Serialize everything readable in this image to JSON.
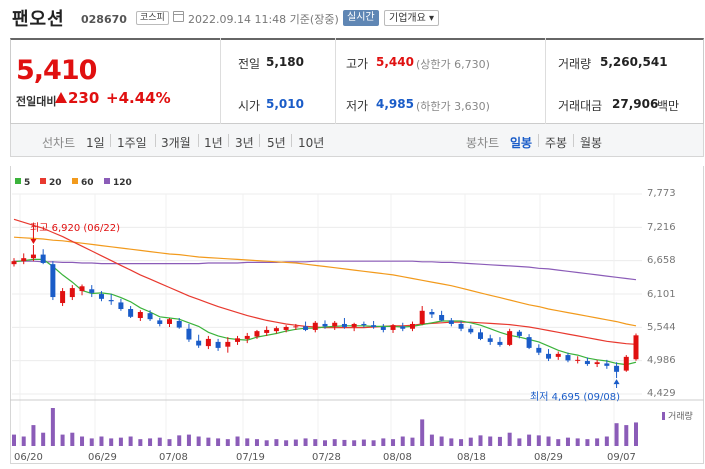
{
  "header": {
    "name": "팬오션",
    "code": "028670",
    "market": "코스피",
    "datetime": "2022.09.14 11:48 기준(장중)",
    "realtime_btn": "실시간",
    "company_btn": "기업개요 ▾",
    "calendar_icon": "calendar-icon"
  },
  "quote": {
    "price": "5,410",
    "change_label": "전일대비",
    "change_amount": "230",
    "change_percent": "+4.44%",
    "prev_close_label": "전일",
    "prev_close": "5,180",
    "open_label": "시가",
    "open": "5,010",
    "high_label": "고가",
    "high": "5,440",
    "upper_limit": "(상한가 6,730)",
    "low_label": "저가",
    "low": "4,985",
    "lower_limit": "(하한가 3,630)",
    "volume_label": "거래량",
    "volume": "5,260,541",
    "amount_label": "거래대금",
    "amount": "27,906",
    "amount_unit": "백만"
  },
  "tabs": {
    "line_chart": "선차트",
    "periods": [
      "1일",
      "1주일",
      "3개월",
      "1년",
      "3년",
      "5년",
      "10년"
    ],
    "candle_chart": "봉차트",
    "candles": [
      "일봉",
      "주봉",
      "월봉"
    ],
    "active_candle": "일봉"
  },
  "colors": {
    "up": "#e01010",
    "down": "#1a5cc8",
    "ma5": "#3bb33b",
    "ma20": "#e8392f",
    "ma60": "#f29a1c",
    "ma120": "#8b5cb8",
    "volume": "#8b5cb8"
  },
  "chart_data": {
    "type": "candlestick",
    "legend": [
      "5",
      "20",
      "60",
      "120"
    ],
    "y_ticks": [
      "7,773",
      "7,216",
      "6,658",
      "6,101",
      "5,544",
      "4,986",
      "4,429"
    ],
    "ylim": [
      4429,
      7773
    ],
    "x_ticks": [
      "06/20",
      "06/29",
      "07/08",
      "07/19",
      "07/28",
      "08/08",
      "08/18",
      "08/29",
      "09/07"
    ],
    "annotations": {
      "high": "최고 6,920 (06/22)",
      "low": "최저 4,695 (09/08)"
    },
    "volume_label": "거래량",
    "candles": [
      {
        "o": 6600,
        "h": 6700,
        "l": 6560,
        "c": 6650
      },
      {
        "o": 6650,
        "h": 6780,
        "l": 6600,
        "c": 6700
      },
      {
        "o": 6700,
        "h": 6920,
        "l": 6650,
        "c": 6760
      },
      {
        "o": 6760,
        "h": 6850,
        "l": 6600,
        "c": 6620
      },
      {
        "o": 6600,
        "h": 6650,
        "l": 6000,
        "c": 6050
      },
      {
        "o": 5950,
        "h": 6200,
        "l": 5900,
        "c": 6150
      },
      {
        "o": 6050,
        "h": 6250,
        "l": 6000,
        "c": 6200
      },
      {
        "o": 6150,
        "h": 6260,
        "l": 6080,
        "c": 6230
      },
      {
        "o": 6180,
        "h": 6250,
        "l": 6050,
        "c": 6120
      },
      {
        "o": 6100,
        "h": 6150,
        "l": 5980,
        "c": 6020
      },
      {
        "o": 6000,
        "h": 6100,
        "l": 5920,
        "c": 5980
      },
      {
        "o": 5960,
        "h": 6020,
        "l": 5820,
        "c": 5850
      },
      {
        "o": 5850,
        "h": 5900,
        "l": 5700,
        "c": 5720
      },
      {
        "o": 5700,
        "h": 5830,
        "l": 5650,
        "c": 5800
      },
      {
        "o": 5780,
        "h": 5830,
        "l": 5650,
        "c": 5680
      },
      {
        "o": 5660,
        "h": 5700,
        "l": 5560,
        "c": 5600
      },
      {
        "o": 5600,
        "h": 5700,
        "l": 5550,
        "c": 5680
      },
      {
        "o": 5650,
        "h": 5700,
        "l": 5520,
        "c": 5540
      },
      {
        "o": 5520,
        "h": 5600,
        "l": 5300,
        "c": 5340
      },
      {
        "o": 5320,
        "h": 5420,
        "l": 5200,
        "c": 5240
      },
      {
        "o": 5230,
        "h": 5400,
        "l": 5180,
        "c": 5350
      },
      {
        "o": 5300,
        "h": 5350,
        "l": 5150,
        "c": 5200
      },
      {
        "o": 5220,
        "h": 5380,
        "l": 5120,
        "c": 5300
      },
      {
        "o": 5300,
        "h": 5400,
        "l": 5250,
        "c": 5360
      },
      {
        "o": 5350,
        "h": 5450,
        "l": 5280,
        "c": 5400
      },
      {
        "o": 5390,
        "h": 5500,
        "l": 5350,
        "c": 5480
      },
      {
        "o": 5450,
        "h": 5560,
        "l": 5400,
        "c": 5500
      },
      {
        "o": 5480,
        "h": 5560,
        "l": 5440,
        "c": 5530
      },
      {
        "o": 5500,
        "h": 5580,
        "l": 5460,
        "c": 5550
      },
      {
        "o": 5550,
        "h": 5600,
        "l": 5500,
        "c": 5560
      },
      {
        "o": 5560,
        "h": 5640,
        "l": 5480,
        "c": 5500
      },
      {
        "o": 5500,
        "h": 5650,
        "l": 5460,
        "c": 5620
      },
      {
        "o": 5600,
        "h": 5660,
        "l": 5520,
        "c": 5560
      },
      {
        "o": 5560,
        "h": 5650,
        "l": 5500,
        "c": 5620
      },
      {
        "o": 5600,
        "h": 5700,
        "l": 5520,
        "c": 5550
      },
      {
        "o": 5550,
        "h": 5620,
        "l": 5480,
        "c": 5600
      },
      {
        "o": 5600,
        "h": 5640,
        "l": 5540,
        "c": 5580
      },
      {
        "o": 5580,
        "h": 5650,
        "l": 5520,
        "c": 5550
      },
      {
        "o": 5550,
        "h": 5600,
        "l": 5460,
        "c": 5500
      },
      {
        "o": 5500,
        "h": 5600,
        "l": 5450,
        "c": 5580
      },
      {
        "o": 5560,
        "h": 5620,
        "l": 5480,
        "c": 5520
      },
      {
        "o": 5520,
        "h": 5640,
        "l": 5480,
        "c": 5600
      },
      {
        "o": 5600,
        "h": 5900,
        "l": 5580,
        "c": 5820
      },
      {
        "o": 5800,
        "h": 5850,
        "l": 5700,
        "c": 5760
      },
      {
        "o": 5750,
        "h": 5820,
        "l": 5640,
        "c": 5660
      },
      {
        "o": 5660,
        "h": 5700,
        "l": 5560,
        "c": 5600
      },
      {
        "o": 5600,
        "h": 5650,
        "l": 5480,
        "c": 5520
      },
      {
        "o": 5520,
        "h": 5580,
        "l": 5430,
        "c": 5460
      },
      {
        "o": 5460,
        "h": 5520,
        "l": 5330,
        "c": 5350
      },
      {
        "o": 5360,
        "h": 5420,
        "l": 5250,
        "c": 5300
      },
      {
        "o": 5300,
        "h": 5380,
        "l": 5220,
        "c": 5250
      },
      {
        "o": 5250,
        "h": 5520,
        "l": 5230,
        "c": 5480
      },
      {
        "o": 5470,
        "h": 5500,
        "l": 5360,
        "c": 5400
      },
      {
        "o": 5380,
        "h": 5430,
        "l": 5180,
        "c": 5200
      },
      {
        "o": 5200,
        "h": 5260,
        "l": 5080,
        "c": 5120
      },
      {
        "o": 5100,
        "h": 5180,
        "l": 4980,
        "c": 5020
      },
      {
        "o": 5050,
        "h": 5140,
        "l": 5000,
        "c": 5100
      },
      {
        "o": 5080,
        "h": 5120,
        "l": 4960,
        "c": 4990
      },
      {
        "o": 4990,
        "h": 5060,
        "l": 4940,
        "c": 5000
      },
      {
        "o": 4980,
        "h": 5040,
        "l": 4900,
        "c": 4930
      },
      {
        "o": 4930,
        "h": 5000,
        "l": 4880,
        "c": 4960
      },
      {
        "o": 4940,
        "h": 5000,
        "l": 4850,
        "c": 4900
      },
      {
        "o": 4900,
        "h": 4960,
        "l": 4695,
        "c": 4800
      },
      {
        "o": 4820,
        "h": 5080,
        "l": 4800,
        "c": 5050
      },
      {
        "o": 5010,
        "h": 5440,
        "l": 4985,
        "c": 5410
      }
    ],
    "volumes": [
      30,
      25,
      55,
      35,
      100,
      30,
      35,
      25,
      20,
      25,
      20,
      22,
      25,
      18,
      20,
      22,
      18,
      28,
      30,
      25,
      22,
      20,
      18,
      25,
      20,
      18,
      15,
      18,
      15,
      17,
      20,
      18,
      15,
      18,
      16,
      15,
      17,
      15,
      20,
      18,
      25,
      22,
      70,
      30,
      25,
      20,
      18,
      22,
      28,
      25,
      24,
      35,
      20,
      30,
      28,
      25,
      18,
      22,
      20,
      18,
      20,
      25,
      60,
      55,
      62
    ],
    "ma5": [
      6640,
      6660,
      6680,
      6680,
      6560,
      6420,
      6300,
      6160,
      6110,
      6120,
      6100,
      6040,
      5970,
      5870,
      5800,
      5720,
      5700,
      5680,
      5620,
      5560,
      5460,
      5400,
      5360,
      5340,
      5330,
      5380,
      5410,
      5440,
      5480,
      5510,
      5530,
      5530,
      5550,
      5560,
      5570,
      5570,
      5570,
      5560,
      5560,
      5560,
      5550,
      5560,
      5590,
      5620,
      5650,
      5650,
      5650,
      5620,
      5580,
      5520,
      5460,
      5410,
      5380,
      5340,
      5300,
      5230,
      5160,
      5110,
      5080,
      5030,
      5000,
      4980,
      4940,
      4920,
      4960
    ],
    "ma20": [
      7350,
      7300,
      7250,
      7200,
      7130,
      7060,
      6980,
      6900,
      6820,
      6740,
      6660,
      6580,
      6500,
      6420,
      6350,
      6280,
      6210,
      6140,
      6070,
      6010,
      5950,
      5890,
      5840,
      5790,
      5740,
      5700,
      5660,
      5630,
      5600,
      5580,
      5560,
      5550,
      5540,
      5540,
      5540,
      5540,
      5540,
      5550,
      5560,
      5570,
      5570,
      5580,
      5600,
      5610,
      5620,
      5630,
      5630,
      5630,
      5620,
      5610,
      5600,
      5590,
      5570,
      5550,
      5520,
      5490,
      5460,
      5430,
      5400,
      5370,
      5340,
      5310,
      5290,
      5270,
      5260
    ],
    "ma60": [
      7050,
      7040,
      7030,
      7020,
      7000,
      6990,
      6970,
      6950,
      6930,
      6910,
      6890,
      6870,
      6850,
      6830,
      6810,
      6790,
      6770,
      6760,
      6740,
      6720,
      6710,
      6700,
      6690,
      6680,
      6670,
      6660,
      6650,
      6640,
      6630,
      6620,
      6600,
      6580,
      6560,
      6540,
      6520,
      6500,
      6480,
      6460,
      6440,
      6420,
      6390,
      6360,
      6330,
      6300,
      6270,
      6240,
      6200,
      6160,
      6120,
      6080,
      6040,
      6000,
      5960,
      5920,
      5890,
      5850,
      5820,
      5790,
      5760,
      5730,
      5700,
      5670,
      5640,
      5600,
      5570
    ],
    "ma120": [
      6650,
      6650,
      6650,
      6640,
      6640,
      6630,
      6630,
      6620,
      6620,
      6610,
      6610,
      6610,
      6610,
      6610,
      6610,
      6610,
      6610,
      6610,
      6610,
      6610,
      6620,
      6620,
      6620,
      6620,
      6630,
      6630,
      6630,
      6630,
      6640,
      6640,
      6640,
      6650,
      6650,
      6650,
      6650,
      6650,
      6650,
      6650,
      6650,
      6650,
      6650,
      6650,
      6640,
      6640,
      6630,
      6630,
      6620,
      6610,
      6600,
      6590,
      6580,
      6570,
      6560,
      6550,
      6530,
      6520,
      6500,
      6480,
      6460,
      6440,
      6420,
      6400,
      6380,
      6360,
      6340
    ]
  }
}
